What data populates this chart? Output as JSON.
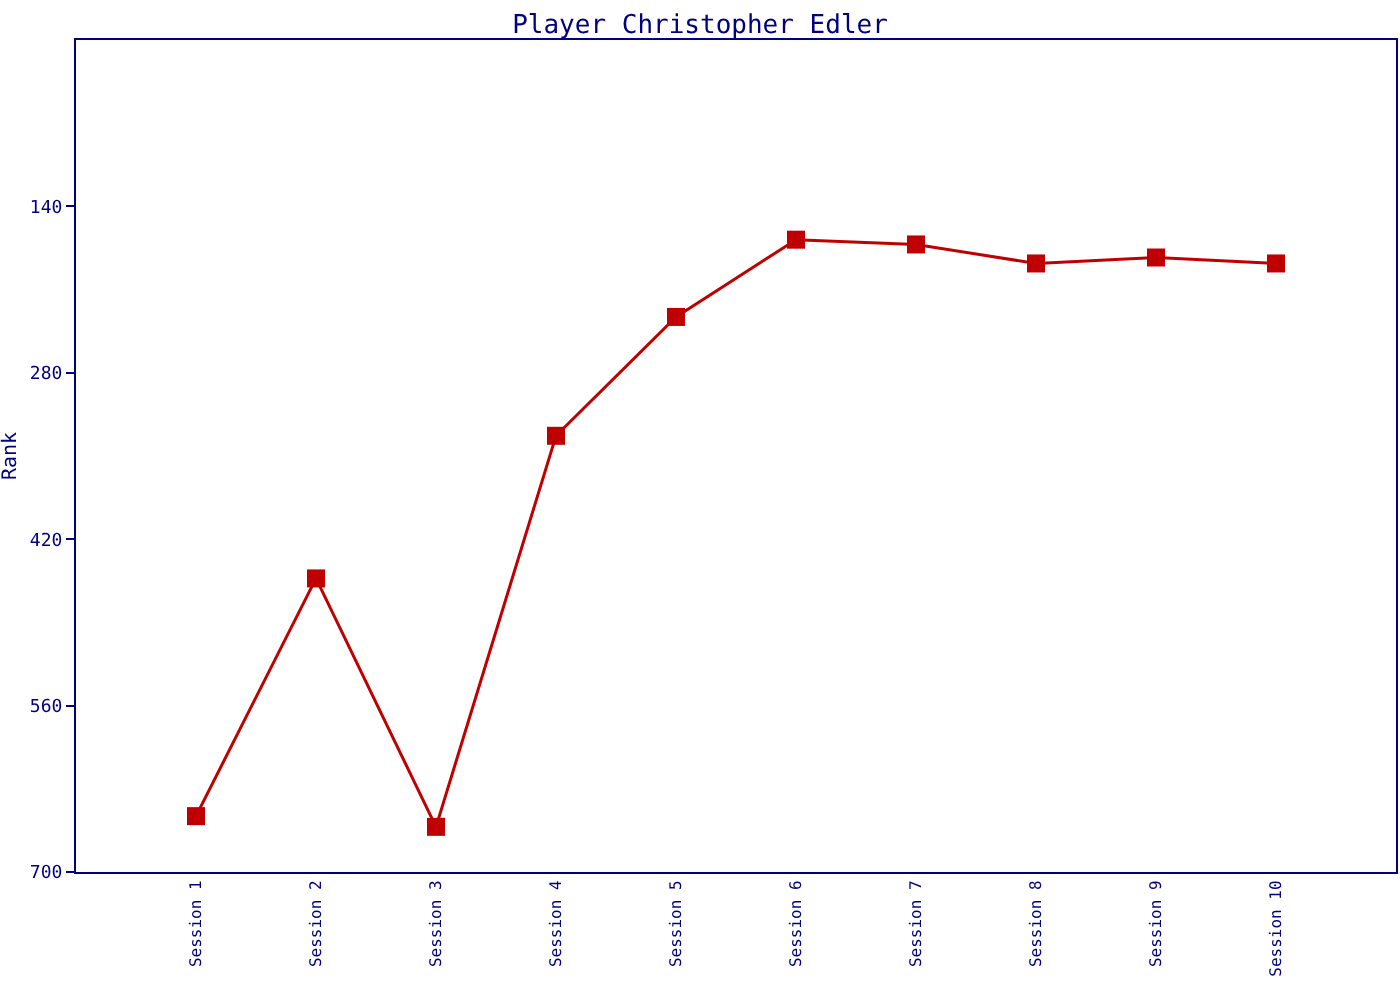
{
  "chart_data": {
    "type": "line",
    "title": "Player Christopher Edler",
    "ylabel": "Rank",
    "categories": [
      "Session 1",
      "Session 2",
      "Session 3",
      "Session 4",
      "Session 5",
      "Session 6",
      "Session 7",
      "Session 8",
      "Session 9",
      "Session 10"
    ],
    "series": [
      {
        "color": "#c00000",
        "values": [
          653,
          453,
          662,
          333,
          233,
          168,
          172,
          188,
          183,
          188
        ]
      }
    ],
    "ylim": [
      700,
      0
    ],
    "yticks": [
      140,
      280,
      420,
      560,
      700
    ],
    "legend": false,
    "marker": "square",
    "line_style": "solid"
  }
}
